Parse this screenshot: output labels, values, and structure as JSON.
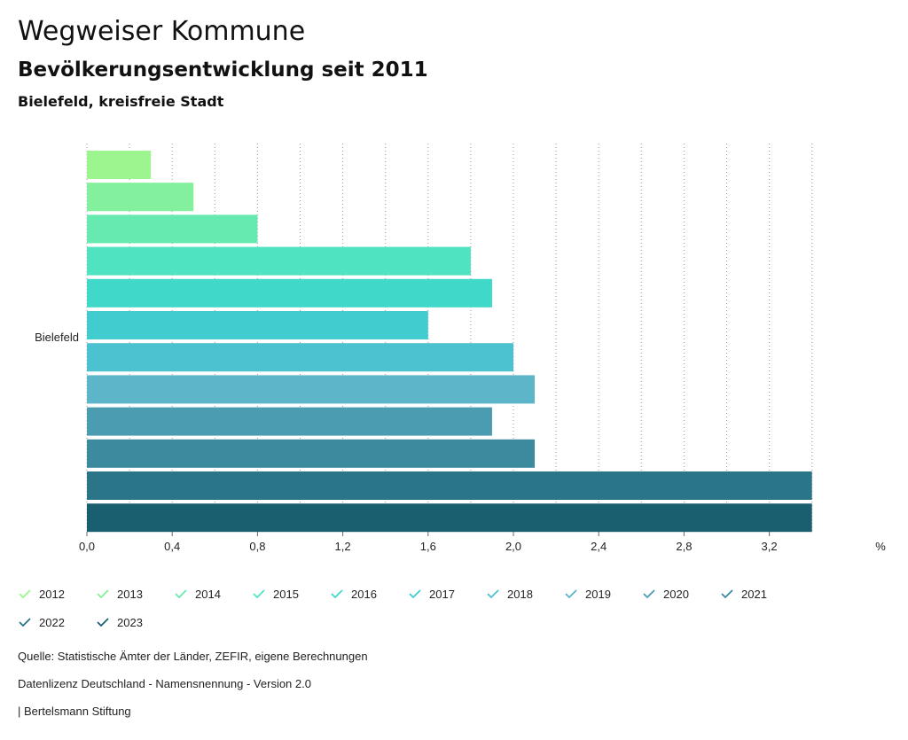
{
  "header": {
    "title": "Wegweiser Kommune",
    "subtitle": "Bevölkerungsentwicklung seit 2011",
    "region": "Bielefeld, kreisfreie Stadt"
  },
  "chart_data": {
    "type": "bar",
    "orientation": "horizontal",
    "categories": [
      "Bielefeld"
    ],
    "series": [
      {
        "name": "2012",
        "values": [
          0.3
        ],
        "color": "#9cf58f"
      },
      {
        "name": "2013",
        "values": [
          0.5
        ],
        "color": "#82f09c"
      },
      {
        "name": "2014",
        "values": [
          0.8
        ],
        "color": "#66eab0"
      },
      {
        "name": "2015",
        "values": [
          1.8
        ],
        "color": "#50e3c2"
      },
      {
        "name": "2016",
        "values": [
          1.9
        ],
        "color": "#40d8c8"
      },
      {
        "name": "2017",
        "values": [
          1.6
        ],
        "color": "#41cdd0"
      },
      {
        "name": "2018",
        "values": [
          2.0
        ],
        "color": "#4cc1cf"
      },
      {
        "name": "2019",
        "values": [
          2.1
        ],
        "color": "#5cb5c8"
      },
      {
        "name": "2020",
        "values": [
          1.9
        ],
        "color": "#4b9cb1"
      },
      {
        "name": "2021",
        "values": [
          2.1
        ],
        "color": "#3b8a9e"
      },
      {
        "name": "2022",
        "values": [
          3.4
        ],
        "color": "#2a7588"
      },
      {
        "name": "2023",
        "values": [
          3.4
        ],
        "color": "#1a5f70"
      }
    ],
    "x_ticks": [
      "0,0",
      "0,4",
      "0,8",
      "1,2",
      "1,6",
      "2,0",
      "2,4",
      "2,8",
      "3,2"
    ],
    "x_tick_values": [
      0,
      0.4,
      0.8,
      1.2,
      1.6,
      2.0,
      2.4,
      2.8,
      3.2
    ],
    "xlim": [
      0,
      3.4
    ],
    "unit_label": "%",
    "grid": true
  },
  "footer": {
    "source": "Quelle: Statistische Ämter der Länder, ZEFIR, eigene Berechnungen",
    "license": "Datenlizenz Deutschland - Namensnennung - Version 2.0",
    "publisher": "| Bertelsmann Stiftung"
  }
}
